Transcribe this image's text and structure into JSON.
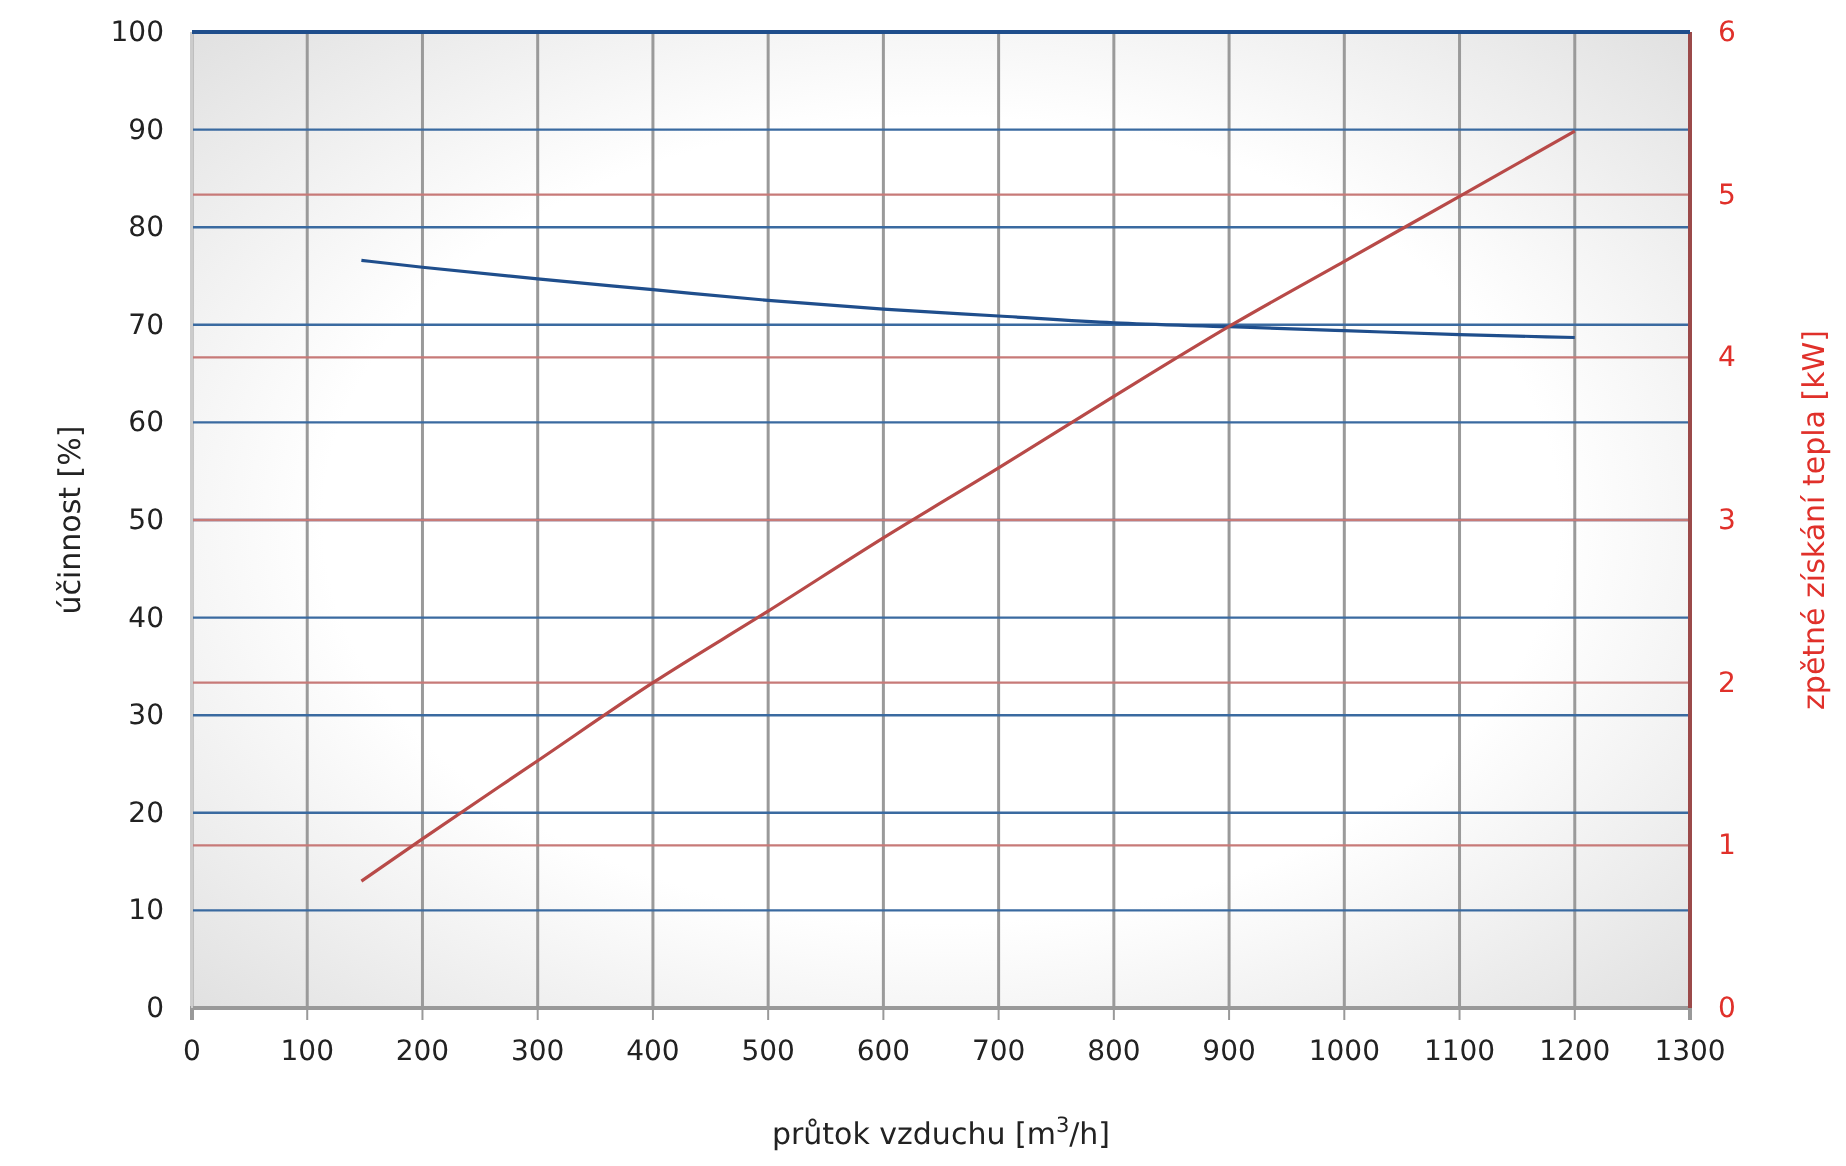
{
  "chart_data": {
    "type": "line",
    "xlabel": "průtok vzduchu [m$^{3}$/h]",
    "ylabel": "účinnost [%]",
    "y2label": "zpětné získání tepla [kW]",
    "xlim": [
      0,
      1300
    ],
    "xticks": [
      0,
      100,
      200,
      300,
      400,
      500,
      600,
      700,
      800,
      900,
      1000,
      1100,
      1200,
      1300
    ],
    "ylim": [
      0,
      100
    ],
    "yticks": [
      0,
      10,
      20,
      30,
      40,
      50,
      60,
      70,
      80,
      90,
      100
    ],
    "y2lim": [
      0,
      6
    ],
    "y2ticks": [
      0,
      1,
      2,
      3,
      4,
      5,
      6
    ],
    "grid": true,
    "marker": "none",
    "line_style": "solid",
    "series": [
      {
        "color": "#1f4e8c",
        "x": [
          147,
          200,
          300,
          400,
          500,
          600,
          700,
          800,
          900,
          1000,
          1100,
          1200
        ],
        "values": [
          76.6,
          75.9,
          74.7,
          73.6,
          72.5,
          71.6,
          70.9,
          70.2,
          69.8,
          69.4,
          69.0,
          68.7
        ]
      },
      {
        "color": "#b84a48",
        "axis": "y2",
        "x": [
          147,
          200,
          300,
          400,
          500,
          600,
          700,
          800,
          900,
          1000,
          1100,
          1200
        ],
        "values": [
          0.78,
          1.04,
          1.52,
          2.0,
          2.44,
          2.89,
          3.32,
          3.76,
          4.19,
          4.59,
          4.99,
          5.39
        ]
      }
    ]
  }
}
